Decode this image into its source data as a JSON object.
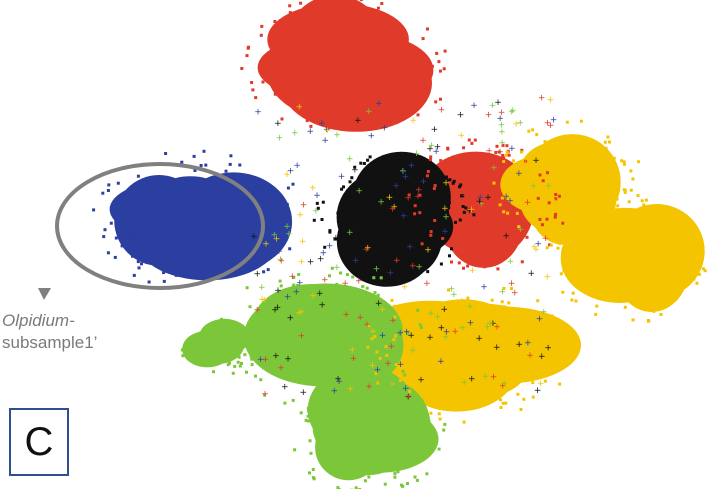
{
  "panel_label": "C",
  "annotation": {
    "line1": "Olpidium-",
    "line2": "subsample1’",
    "ellipse_color": "#808080"
  },
  "chart_data": {
    "type": "scatter",
    "title": "",
    "xlabel": "",
    "ylabel": "",
    "axes": "hidden",
    "grid": false,
    "legend": "none",
    "description_of_colors": [
      "#e03a2a",
      "#2a3fa0",
      "#111111",
      "#f5c400",
      "#7cc63a"
    ],
    "clusters": [
      {
        "color": "#e03a2a",
        "marker": "x",
        "center": [
          0.45,
          0.88
        ],
        "size": "large"
      },
      {
        "color": "#e03a2a",
        "marker": "x",
        "center": [
          0.66,
          0.58
        ],
        "size": "medium"
      },
      {
        "color": "#2a3fa0",
        "marker": "square",
        "center": [
          0.22,
          0.55
        ],
        "size": "large"
      },
      {
        "color": "#111111",
        "marker": "plus",
        "center": [
          0.52,
          0.55
        ],
        "size": "medium"
      },
      {
        "color": "#f5c400",
        "marker": "triangle",
        "center": [
          0.79,
          0.62
        ],
        "size": "medium"
      },
      {
        "color": "#f5c400",
        "marker": "triangle",
        "center": [
          0.88,
          0.47
        ],
        "size": "medium"
      },
      {
        "color": "#f5c400",
        "marker": "triangle",
        "center": [
          0.63,
          0.27
        ],
        "size": "large"
      },
      {
        "color": "#7cc63a",
        "marker": "triangle-down",
        "center": [
          0.41,
          0.3
        ],
        "size": "large"
      },
      {
        "color": "#7cc63a",
        "marker": "triangle-down",
        "center": [
          0.48,
          0.1
        ],
        "size": "medium"
      },
      {
        "color": "#7cc63a",
        "marker": "triangle-down",
        "center": [
          0.25,
          0.28
        ],
        "size": "small"
      }
    ]
  }
}
